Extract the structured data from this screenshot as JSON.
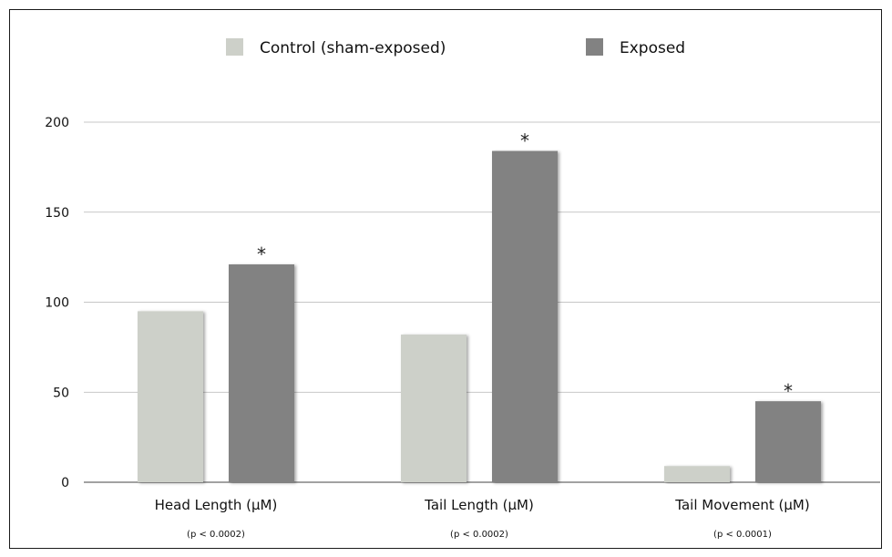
{
  "chart_data": {
    "type": "bar",
    "categories": [
      "Head Length (µM)",
      "Tail Length (µM)",
      "Tail Movement (µM)"
    ],
    "category_notes": [
      "(p < 0.0002)",
      "(p < 0.0002)",
      "(p < 0.0001)"
    ],
    "series": [
      {
        "name": "Control (sham-exposed)",
        "color": "#cdd0c9",
        "values": [
          95,
          82,
          9
        ]
      },
      {
        "name": "Exposed",
        "color": "#828282",
        "values": [
          121,
          184,
          45
        ]
      }
    ],
    "significance": [
      "*",
      "*",
      "*"
    ],
    "yticks": [
      0,
      50,
      100,
      150,
      200
    ],
    "ylim": [
      0,
      200
    ],
    "grid": true,
    "legend_position": "top-center",
    "title": "",
    "xlabel": "",
    "ylabel": ""
  }
}
